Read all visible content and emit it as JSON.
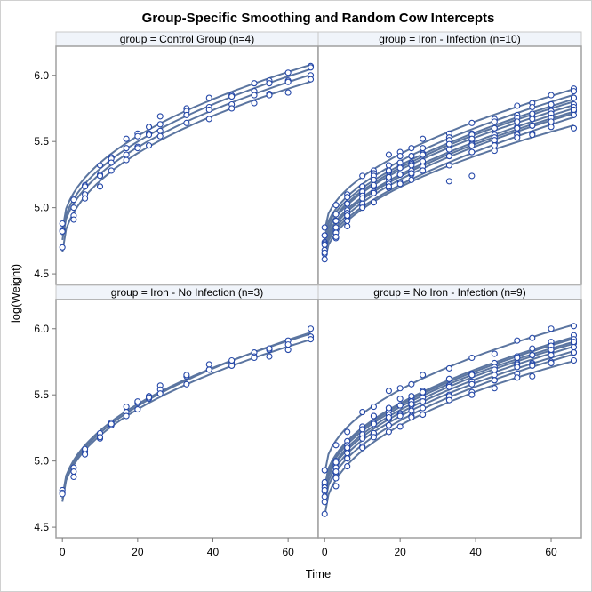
{
  "chart_data": {
    "type": "scatter",
    "title": "Group-Specific Smoothing and Random Cow Intercepts",
    "xlabel": "Time",
    "ylabel": "log(Weight)",
    "xlim": [
      -1.7,
      68
    ],
    "ylim": [
      4.42,
      6.22
    ],
    "x_ticks": [
      "0",
      "20",
      "40",
      "60"
    ],
    "y_ticks": [
      "4.5",
      "5.0",
      "5.5",
      "6.0"
    ],
    "grid": false,
    "fit": "smoothed curve per cow",
    "colors": {
      "marker": "#2447a8",
      "curve": "#5b75a0",
      "header_bg": "#f0f4fa",
      "frame": "#a0a0a0"
    },
    "x": [
      0,
      3,
      6,
      10,
      13,
      17,
      20,
      23,
      26,
      33,
      39,
      45,
      51,
      55,
      60,
      66
    ],
    "panels": [
      {
        "label": "group = Control Group (n=4)",
        "series": [
          {
            "values": [
              4.88,
              5.06,
              5.17,
              5.32,
              5.38,
              5.52,
              5.56,
              5.61,
              5.69,
              5.75,
              5.83,
              5.85,
              5.94,
              5.96,
              6.02,
              6.07
            ]
          },
          {
            "values": [
              4.83,
              5.0,
              5.16,
              5.25,
              5.37,
              5.45,
              5.54,
              5.56,
              5.63,
              5.73,
              5.76,
              5.84,
              5.88,
              5.94,
              5.96,
              6.06
            ]
          },
          {
            "values": [
              4.82,
              4.94,
              5.1,
              5.24,
              5.34,
              5.4,
              5.46,
              5.55,
              5.58,
              5.7,
              5.74,
              5.78,
              5.85,
              5.86,
              5.95,
              6.0
            ]
          },
          {
            "values": [
              4.7,
              4.91,
              5.07,
              5.16,
              5.28,
              5.36,
              5.45,
              5.47,
              5.54,
              5.64,
              5.67,
              5.75,
              5.79,
              5.85,
              5.87,
              5.97
            ]
          }
        ]
      },
      {
        "label": "group = Iron - Infection (n=10)",
        "series": [
          {
            "values": [
              4.85,
              5.02,
              5.1,
              5.24,
              5.28,
              5.4,
              5.42,
              5.45,
              5.52,
              5.56,
              5.64,
              5.67,
              5.77,
              5.79,
              5.85,
              5.9
            ]
          },
          {
            "values": [
              4.79,
              4.95,
              5.08,
              5.16,
              5.26,
              5.32,
              5.39,
              5.39,
              5.45,
              5.53,
              5.56,
              5.65,
              5.7,
              5.76,
              5.78,
              5.88
            ]
          },
          {
            "values": [
              4.79,
              4.9,
              5.03,
              5.16,
              5.24,
              5.28,
              5.32,
              5.39,
              5.41,
              5.51,
              5.55,
              5.6,
              5.68,
              5.69,
              5.78,
              5.83
            ]
          },
          {
            "values": [
              4.74,
              4.9,
              5.03,
              5.11,
              5.21,
              5.27,
              5.34,
              5.34,
              5.4,
              5.48,
              5.51,
              5.6,
              5.65,
              5.71,
              5.73,
              5.83
            ]
          },
          {
            "values": [
              4.73,
              4.9,
              4.98,
              5.12,
              5.16,
              5.28,
              5.3,
              5.33,
              5.4,
              5.44,
              5.52,
              5.55,
              5.65,
              5.67,
              5.73,
              5.78
            ]
          },
          {
            "values": [
              4.72,
              4.83,
              4.96,
              5.09,
              5.17,
              5.21,
              5.25,
              5.32,
              5.34,
              5.44,
              5.48,
              5.53,
              5.61,
              5.62,
              5.71,
              5.76
            ]
          },
          {
            "values": [
              4.68,
              4.85,
              4.93,
              5.07,
              5.11,
              5.23,
              5.25,
              5.28,
              5.35,
              5.39,
              5.47,
              5.5,
              5.6,
              5.62,
              5.68,
              5.73
            ]
          },
          {
            "values": [
              4.65,
              4.81,
              4.94,
              5.02,
              5.12,
              5.18,
              5.25,
              5.25,
              5.31,
              5.39,
              5.42,
              5.51,
              5.56,
              5.62,
              5.64,
              5.74
            ]
          },
          {
            "values": [
              4.66,
              4.77,
              4.9,
              5.03,
              5.11,
              5.15,
              5.19,
              5.26,
              5.28,
              5.2,
              5.42,
              5.47,
              5.55,
              5.56,
              5.65,
              5.7
            ]
          },
          {
            "values": [
              4.61,
              4.78,
              4.86,
              5.0,
              5.04,
              5.16,
              5.18,
              5.21,
              5.28,
              5.32,
              5.24,
              5.43,
              5.53,
              5.55,
              5.61,
              5.6
            ]
          }
        ]
      },
      {
        "label": "group = Iron - No Infection (n=3)",
        "series": [
          {
            "values": [
              4.78,
              4.95,
              5.07,
              5.21,
              5.27,
              5.41,
              5.44,
              5.49,
              5.57,
              5.64,
              5.73,
              5.74,
              5.82,
              5.84,
              5.91,
              5.94
            ]
          },
          {
            "values": [
              4.76,
              4.92,
              5.09,
              5.17,
              5.29,
              5.37,
              5.45,
              5.47,
              5.54,
              5.65,
              5.69,
              5.76,
              5.79,
              5.85,
              5.88,
              6.0
            ]
          },
          {
            "values": [
              4.75,
              4.88,
              5.05,
              5.18,
              5.28,
              5.34,
              5.39,
              5.48,
              5.51,
              5.58,
              5.69,
              5.72,
              5.78,
              5.79,
              5.84,
              5.92
            ]
          }
        ]
      },
      {
        "label": "group = No Iron - Infection (n=9)",
        "series": [
          {
            "values": [
              4.93,
              5.12,
              5.22,
              5.37,
              5.41,
              5.53,
              5.55,
              5.58,
              5.65,
              5.7,
              5.78,
              5.81,
              5.91,
              5.93,
              6.0,
              6.02
            ]
          },
          {
            "values": [
              4.82,
              5.0,
              5.15,
              5.24,
              5.34,
              5.4,
              5.47,
              5.47,
              5.53,
              5.62,
              5.65,
              5.74,
              5.79,
              5.85,
              5.88,
              5.95
            ]
          },
          {
            "values": [
              4.84,
              4.97,
              5.12,
              5.26,
              5.34,
              5.38,
              5.42,
              5.49,
              5.51,
              5.62,
              5.66,
              5.71,
              5.79,
              5.8,
              5.9,
              5.92
            ]
          },
          {
            "values": [
              4.8,
              4.99,
              5.09,
              5.24,
              5.28,
              5.4,
              5.42,
              5.45,
              5.52,
              5.57,
              5.65,
              5.68,
              5.78,
              5.8,
              5.87,
              5.89
            ]
          },
          {
            "values": [
              4.77,
              4.95,
              5.1,
              5.19,
              5.29,
              5.35,
              5.42,
              5.42,
              5.48,
              5.57,
              5.6,
              5.69,
              5.74,
              5.8,
              5.83,
              5.9
            ]
          },
          {
            "values": [
              4.78,
              4.91,
              5.06,
              5.2,
              5.28,
              5.32,
              5.36,
              5.43,
              5.45,
              5.56,
              5.6,
              5.65,
              5.73,
              5.74,
              5.84,
              5.86
            ]
          },
          {
            "values": [
              4.73,
              4.92,
              5.02,
              5.17,
              5.21,
              5.33,
              5.35,
              5.38,
              5.45,
              5.5,
              5.58,
              5.61,
              5.71,
              5.73,
              5.8,
              5.82
            ]
          },
          {
            "values": [
              4.69,
              4.87,
              5.02,
              5.11,
              5.21,
              5.27,
              5.34,
              5.34,
              5.4,
              5.49,
              5.52,
              5.61,
              5.66,
              5.72,
              5.75,
              5.82
            ]
          },
          {
            "values": [
              4.6,
              4.81,
              4.96,
              5.1,
              5.18,
              5.22,
              5.26,
              5.33,
              5.35,
              5.46,
              5.5,
              5.55,
              5.63,
              5.64,
              5.74,
              5.76
            ]
          }
        ]
      }
    ]
  }
}
